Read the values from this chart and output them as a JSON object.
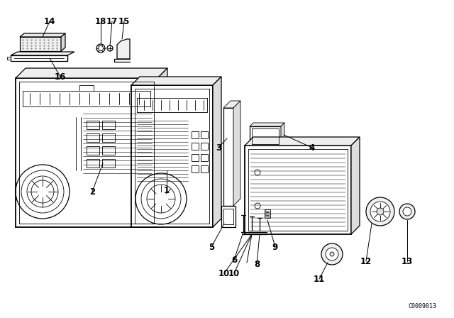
{
  "bg_color": "#ffffff",
  "line_color": "#000000",
  "catalog_number": "C0009013",
  "lw_thin": 0.6,
  "lw_med": 0.9,
  "lw_thick": 1.3,
  "label_fontsize": 8.5,
  "cat_fontsize": 6.0
}
